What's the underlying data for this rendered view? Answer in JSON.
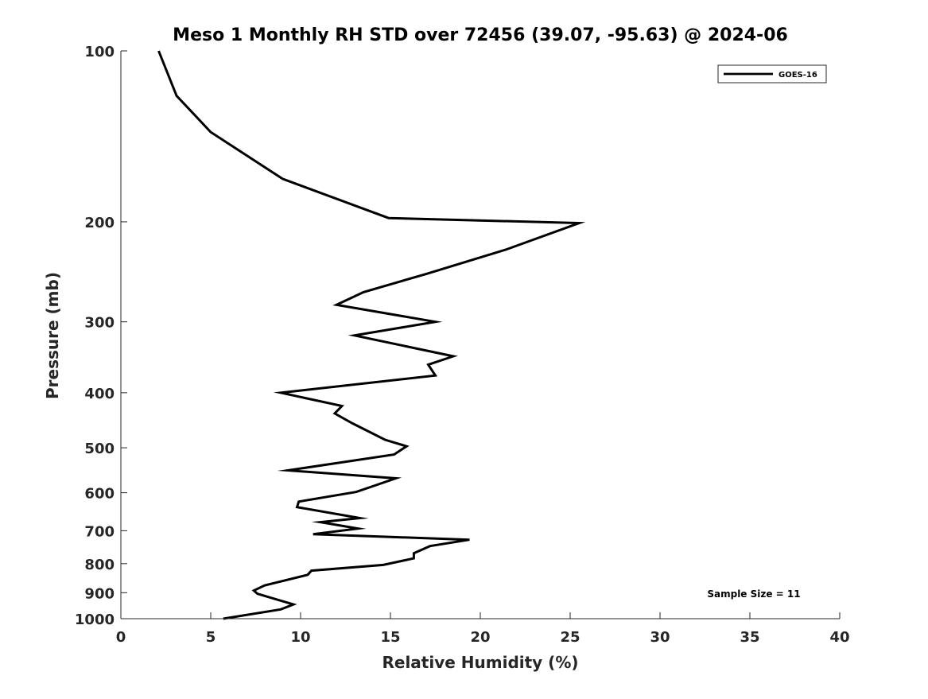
{
  "chart_data": {
    "type": "line",
    "title": "Meso 1 Monthly RH STD over 72456 (39.07, -95.63) @ 2024-06",
    "xlabel": "Relative Humidity (%)",
    "ylabel": "Pressure (mb)",
    "xlim": [
      0,
      40
    ],
    "ylim": [
      100,
      1000
    ],
    "yscale": "log",
    "y_reversed": true,
    "xticks": [
      0,
      5,
      10,
      15,
      20,
      25,
      30,
      35,
      40
    ],
    "yticks": [
      100,
      200,
      300,
      400,
      500,
      600,
      700,
      800,
      900,
      1000
    ],
    "grid": false,
    "legend": {
      "position": "top-right",
      "entries": [
        "GOES-16"
      ]
    },
    "annotation": "Sample Size = 11",
    "series": [
      {
        "name": "GOES-16",
        "color": "#000000",
        "points": [
          [
            2.1,
            100
          ],
          [
            3.1,
            120
          ],
          [
            5.0,
            139
          ],
          [
            9.0,
            168
          ],
          [
            14.9,
            197
          ],
          [
            25.5,
            201
          ],
          [
            21.4,
            224
          ],
          [
            17.0,
            247
          ],
          [
            13.5,
            266
          ],
          [
            12.0,
            280
          ],
          [
            17.5,
            300
          ],
          [
            13.0,
            317
          ],
          [
            18.5,
            345
          ],
          [
            17.1,
            357
          ],
          [
            17.5,
            373
          ],
          [
            8.9,
            400
          ],
          [
            12.3,
            422
          ],
          [
            11.9,
            435
          ],
          [
            12.9,
            453
          ],
          [
            14.7,
            484
          ],
          [
            15.9,
            497
          ],
          [
            15.2,
            514
          ],
          [
            9.3,
            548
          ],
          [
            15.3,
            566
          ],
          [
            13.1,
            598
          ],
          [
            9.9,
            622
          ],
          [
            9.8,
            636
          ],
          [
            13.3,
            665
          ],
          [
            11.1,
            676
          ],
          [
            13.2,
            694
          ],
          [
            10.7,
            710
          ],
          [
            19.4,
            726
          ],
          [
            17.2,
            745
          ],
          [
            16.3,
            767
          ],
          [
            16.3,
            783
          ],
          [
            14.6,
            804
          ],
          [
            10.6,
            823
          ],
          [
            10.4,
            837
          ],
          [
            8.0,
            874
          ],
          [
            7.4,
            892
          ],
          [
            7.6,
            904
          ],
          [
            9.6,
            944
          ],
          [
            8.9,
            963
          ],
          [
            5.7,
            1000
          ]
        ]
      }
    ]
  }
}
